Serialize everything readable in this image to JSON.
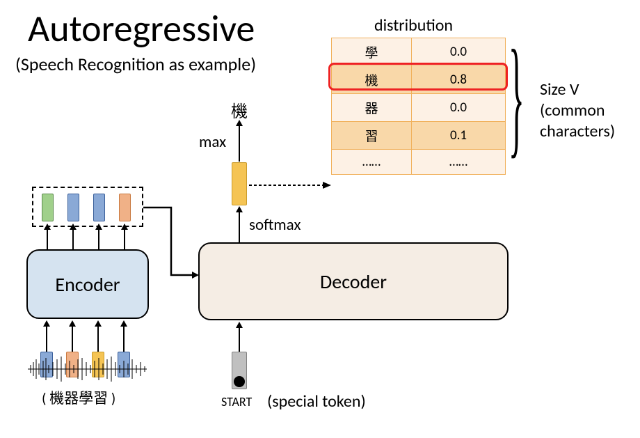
{
  "title": "Autoregressive",
  "subtitle": "(Speech Recognition as example)",
  "encoder": {
    "label": "Encoder",
    "fill": "#d5e3f0"
  },
  "decoder": {
    "label": "Decoder",
    "fill": "#f5ede4"
  },
  "softmax_label": "softmax",
  "max_label": "max",
  "output_char": "機",
  "dist_header": "distribution",
  "dist_rows": [
    {
      "char": "學",
      "prob": "0.0",
      "bg": "#fdf1e5",
      "highlight": false
    },
    {
      "char": "機",
      "prob": "0.8",
      "bg": "#f9d8a9",
      "highlight": true
    },
    {
      "char": "器",
      "prob": "0.0",
      "bg": "#fdf1e5",
      "highlight": false
    },
    {
      "char": "習",
      "prob": "0.1",
      "bg": "#f9d8a9",
      "highlight": false
    },
    {
      "char": "……",
      "prob": "……",
      "bg": "#fdf1e5",
      "highlight": false
    }
  ],
  "size_v_label": "Size V",
  "size_v_sub": "(common characters)",
  "start_label": "START",
  "special_token_label": "(special token)",
  "input_caption": "( 機器學習 )",
  "colors": {
    "tok_green": "#a0d08b",
    "tok_blue": "#8aa9d6",
    "tok_orange": "#f0b187",
    "tok_yellow": "#f5c454",
    "tok_grey": "#c0c0c0",
    "highlight_border": "#ee2222",
    "token_border": "#3a5f9a"
  }
}
